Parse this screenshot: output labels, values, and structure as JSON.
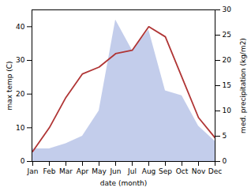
{
  "chart_data": {
    "type": "line",
    "xlabel": "date (month)",
    "ylabel": "max temp (C)",
    "y2label": "med. precipitation (kg/m2)",
    "categories": [
      "Jan",
      "Feb",
      "Mar",
      "Apr",
      "May",
      "Jun",
      "Jul",
      "Aug",
      "Sep",
      "Oct",
      "Nov",
      "Dec"
    ],
    "series": [
      {
        "type": "area",
        "axis": "y2",
        "color": "#b8c4e8",
        "values": [
          2.5,
          2.5,
          3.5,
          5,
          10,
          28,
          22,
          26,
          14,
          13,
          7,
          4
        ]
      },
      {
        "type": "line",
        "color": "#b03535",
        "values": [
          3,
          10,
          19,
          26,
          28,
          32,
          33,
          40,
          37,
          25,
          13,
          7
        ]
      }
    ],
    "ylim": [
      0,
      45
    ],
    "yticks": [
      0,
      10,
      20,
      30,
      40
    ],
    "y2lim": [
      0,
      30
    ],
    "y2ticks": [
      0,
      5,
      10,
      15,
      20,
      25,
      30
    ],
    "grid": false
  }
}
